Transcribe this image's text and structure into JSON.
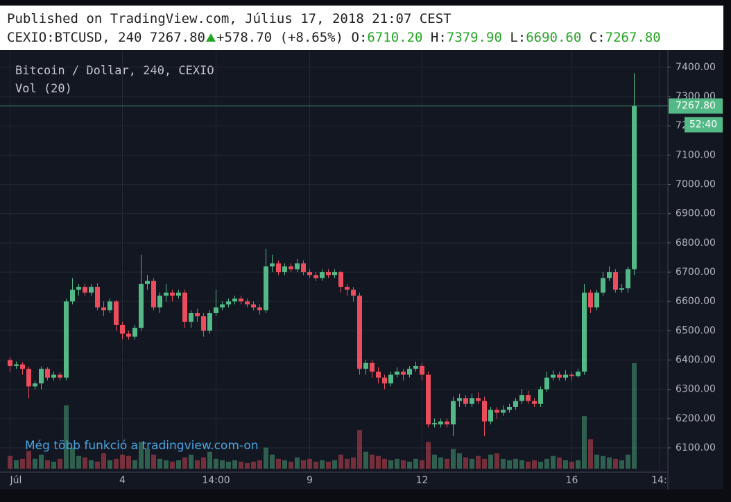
{
  "header": {
    "published": "Published on TradingView.com, Július 17, 2018 21:07 CEST",
    "symbol": "CEXIO:BTCUSD, 240",
    "last": "7267.80",
    "change": "+578.70",
    "change_pct": "(+8.65%)",
    "o_label": "O:",
    "o": "6710.20",
    "h_label": "H:",
    "h": "7379.90",
    "l_label": "L:",
    "l": "6690.60",
    "c_label": "C:",
    "c": "7267.80"
  },
  "chart_data": {
    "type": "candlestick",
    "title": "Bitcoin / Dollar, 240, CEXIO",
    "volume_label": "Vol (20)",
    "watermark": "Még több funkció a tradingview.com-on",
    "categories": [
      "Júl",
      null,
      null,
      null,
      null,
      null,
      null,
      null,
      null,
      null,
      null,
      null,
      null,
      null,
      null,
      null,
      null,
      null,
      "4",
      null,
      null,
      null,
      null,
      null,
      null,
      null,
      null,
      null,
      null,
      null,
      null,
      null,
      null,
      "14:00",
      null,
      null,
      null,
      null,
      null,
      null,
      null,
      null,
      null,
      null,
      null,
      null,
      null,
      null,
      "9",
      null,
      null,
      null,
      null,
      null,
      null,
      null,
      null,
      null,
      null,
      null,
      null,
      null,
      null,
      null,
      null,
      null,
      "12",
      null,
      null,
      null,
      null,
      null,
      null,
      null,
      null,
      null,
      null,
      null,
      null,
      null,
      null,
      null,
      null,
      null,
      null,
      null,
      null,
      null,
      null,
      null,
      "16",
      null,
      null,
      null,
      null,
      null,
      null,
      null,
      null,
      null,
      null,
      null,
      null,
      null,
      "14:"
    ],
    "open": [
      6400,
      6380,
      6385,
      6370,
      6310,
      6320,
      6370,
      6340,
      6350,
      6340,
      6600,
      6640,
      6650,
      6630,
      6650,
      6580,
      6570,
      6600,
      6520,
      6490,
      6480,
      6510,
      6660,
      6670,
      6580,
      6620,
      6630,
      6620,
      6630,
      6530,
      6560,
      6550,
      6500,
      6560,
      6580,
      6590,
      6600,
      6610,
      6600,
      6590,
      6580,
      6570,
      6720,
      6730,
      6700,
      6720,
      6710,
      6730,
      6700,
      6690,
      6680,
      6700,
      6690,
      6700,
      6650,
      6640,
      6620,
      6370,
      6390,
      6360,
      6340,
      6320,
      6350,
      6360,
      6350,
      6370,
      6380,
      6350,
      6180,
      6180,
      6190,
      6180,
      6260,
      6270,
      6250,
      6270,
      6260,
      6190,
      6230,
      6220,
      6230,
      6240,
      6260,
      6280,
      6260,
      6250,
      6300,
      6340,
      6350,
      6340,
      6350,
      6345,
      6360,
      6630,
      6580,
      6630,
      6680,
      6700,
      6640,
      6645,
      6710.2,
      null,
      null,
      null,
      null
    ],
    "high": [
      6410,
      6395,
      6392,
      6378,
      6330,
      6378,
      6375,
      6360,
      6358,
      6610,
      6680,
      6660,
      6660,
      6660,
      6662,
      6600,
      6610,
      6605,
      6530,
      6500,
      6520,
      6760,
      6690,
      6680,
      6630,
      6660,
      6640,
      6640,
      6640,
      6570,
      6575,
      6560,
      6570,
      6640,
      6600,
      6610,
      6620,
      6620,
      6610,
      6600,
      6590,
      6780,
      6760,
      6740,
      6730,
      6730,
      6745,
      6740,
      6710,
      6700,
      6710,
      6710,
      6710,
      6705,
      6660,
      6650,
      6630,
      6400,
      6400,
      6375,
      6350,
      6360,
      6375,
      6370,
      6380,
      6395,
      6390,
      6360,
      6200,
      6200,
      6200,
      6275,
      6285,
      6280,
      6285,
      6290,
      6275,
      6240,
      6240,
      6245,
      6250,
      6270,
      6300,
      6295,
      6270,
      6310,
      6360,
      6365,
      6360,
      6365,
      6360,
      6370,
      6660,
      6640,
      6640,
      6700,
      6720,
      6710,
      6660,
      6720,
      7379.9,
      null,
      null,
      null,
      null
    ],
    "low": [
      6360,
      6370,
      6350,
      6270,
      6300,
      6300,
      6330,
      6330,
      6330,
      6330,
      6590,
      6620,
      6620,
      6620,
      6570,
      6550,
      6560,
      6500,
      6470,
      6470,
      6470,
      6500,
      6640,
      6570,
      6560,
      6600,
      6600,
      6610,
      6510,
      6510,
      6530,
      6480,
      6490,
      6550,
      6570,
      6580,
      6590,
      6590,
      6580,
      6570,
      6555,
      6560,
      6700,
      6690,
      6690,
      6700,
      6700,
      6690,
      6680,
      6670,
      6670,
      6680,
      6680,
      6630,
      6620,
      6600,
      6350,
      6350,
      6340,
      6320,
      6300,
      6310,
      6340,
      6330,
      6340,
      6360,
      6330,
      6170,
      6170,
      6170,
      6170,
      6140,
      6240,
      6240,
      6240,
      6250,
      6140,
      6180,
      6200,
      6210,
      6220,
      6230,
      6250,
      6250,
      6240,
      6240,
      6290,
      6330,
      6330,
      6330,
      6330,
      6340,
      6350,
      6560,
      6570,
      6620,
      6670,
      6630,
      6630,
      6630,
      6690.6,
      null,
      null,
      null,
      null
    ],
    "close": [
      6380,
      6385,
      6370,
      6310,
      6320,
      6370,
      6340,
      6350,
      6340,
      6600,
      6640,
      6650,
      6630,
      6650,
      6580,
      6570,
      6600,
      6520,
      6490,
      6480,
      6510,
      6660,
      6670,
      6580,
      6620,
      6630,
      6620,
      6630,
      6530,
      6560,
      6550,
      6500,
      6560,
      6580,
      6590,
      6600,
      6610,
      6600,
      6590,
      6580,
      6570,
      6720,
      6730,
      6700,
      6720,
      6710,
      6730,
      6700,
      6690,
      6680,
      6700,
      6690,
      6700,
      6650,
      6640,
      6620,
      6370,
      6390,
      6360,
      6340,
      6320,
      6350,
      6360,
      6350,
      6370,
      6380,
      6350,
      6180,
      6185,
      6190,
      6180,
      6260,
      6270,
      6250,
      6270,
      6260,
      6190,
      6230,
      6220,
      6230,
      6240,
      6260,
      6280,
      6260,
      6250,
      6300,
      6340,
      6350,
      6340,
      6350,
      6345,
      6360,
      6630,
      6580,
      6630,
      6680,
      6700,
      6640,
      6645,
      6710.2,
      7267.8,
      null,
      null,
      null,
      null
    ],
    "volume": [
      18,
      12,
      14,
      25,
      14,
      20,
      12,
      10,
      14,
      90,
      30,
      18,
      16,
      12,
      10,
      22,
      12,
      14,
      20,
      18,
      12,
      38,
      28,
      20,
      14,
      12,
      10,
      12,
      16,
      20,
      12,
      16,
      24,
      14,
      12,
      10,
      12,
      10,
      8,
      10,
      12,
      30,
      20,
      14,
      12,
      10,
      16,
      12,
      14,
      10,
      12,
      10,
      12,
      20,
      14,
      16,
      55,
      24,
      20,
      18,
      14,
      12,
      14,
      12,
      10,
      14,
      12,
      38,
      20,
      16,
      14,
      28,
      22,
      16,
      14,
      18,
      14,
      20,
      22,
      14,
      12,
      14,
      12,
      10,
      12,
      10,
      14,
      18,
      16,
      12,
      10,
      12,
      75,
      42,
      20,
      18,
      16,
      14,
      12,
      20,
      150,
      null,
      null,
      null,
      null
    ],
    "up_color": "#53b987",
    "down_color": "#eb4d5c",
    "ylim": [
      6017,
      7459
    ],
    "yticks": [
      {
        "value": 6100,
        "label": "6100.00"
      },
      {
        "value": 6200,
        "label": "6200.00"
      },
      {
        "value": 6300,
        "label": "6300.00"
      },
      {
        "value": 6400,
        "label": "6400.00"
      },
      {
        "value": 6500,
        "label": "6500.00"
      },
      {
        "value": 6600,
        "label": "6600.00"
      },
      {
        "value": 6700,
        "label": "6700.00"
      },
      {
        "value": 6800,
        "label": "6800.00"
      },
      {
        "value": 6900,
        "label": "6900.00"
      },
      {
        "value": 7000,
        "label": "7000.00"
      },
      {
        "value": 7100,
        "label": "7100.00"
      },
      {
        "value": 7200,
        "label": "7200.00"
      },
      {
        "value": 7300,
        "label": "7300.00"
      },
      {
        "value": 7400,
        "label": "7400.00"
      }
    ],
    "grid": true,
    "last_price": {
      "value": 7267.8,
      "label": "7267.80"
    },
    "countdown": "52:40"
  }
}
